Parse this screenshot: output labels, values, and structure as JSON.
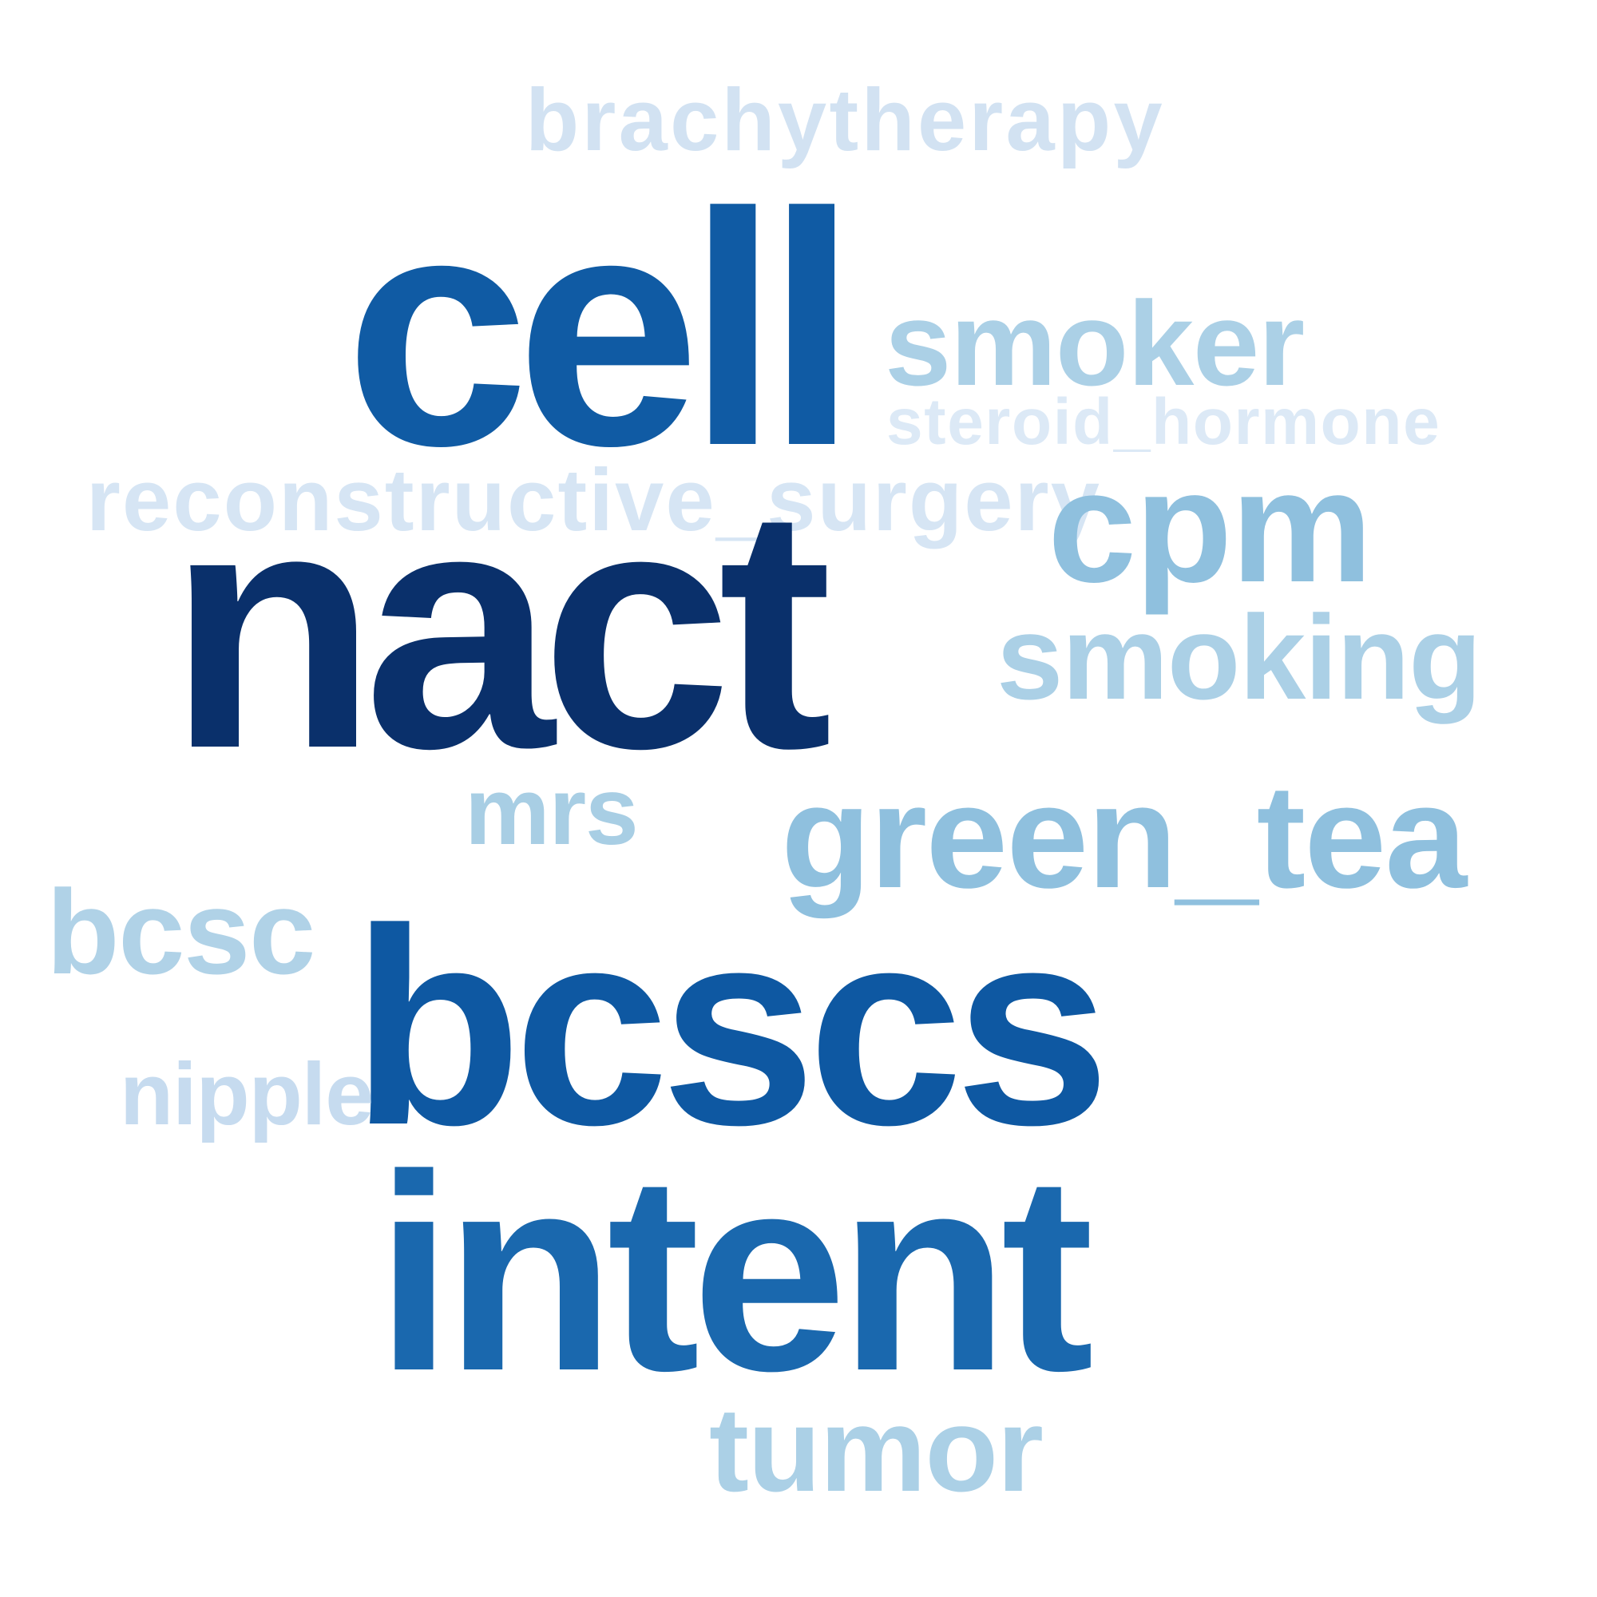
{
  "word_cloud": {
    "words": [
      {
        "id": "brachytherapy",
        "text": "brachytherapy",
        "color": "#d2e2f2"
      },
      {
        "id": "cell",
        "text": "cell",
        "color": "#105ba4"
      },
      {
        "id": "smoker",
        "text": "smoker",
        "color": "#abd0e6"
      },
      {
        "id": "steroid_hormone",
        "text": "steroid_hormone",
        "color": "#dce9f6"
      },
      {
        "id": "reconstructive_surgery",
        "text": "reconstructive_surgery",
        "color": "#d6e5f4"
      },
      {
        "id": "cpm",
        "text": "cpm",
        "color": "#8fc0de"
      },
      {
        "id": "nact",
        "text": "nact",
        "color": "#0a306b"
      },
      {
        "id": "smoking",
        "text": "smoking",
        "color": "#abd0e6"
      },
      {
        "id": "mrs",
        "text": "mrs",
        "color": "#a8cee4"
      },
      {
        "id": "green_tea",
        "text": "green_tea",
        "color": "#8fc0de"
      },
      {
        "id": "bcsc",
        "text": "bcsc",
        "color": "#b0d2e7"
      },
      {
        "id": "bcscs",
        "text": "bcscs",
        "color": "#0e58a2"
      },
      {
        "id": "nipple",
        "text": "nipple",
        "color": "#c6dbef"
      },
      {
        "id": "intent",
        "text": "intent",
        "color": "#1a68ae"
      },
      {
        "id": "tumor",
        "text": "tumor",
        "color": "#abd0e6"
      }
    ]
  }
}
